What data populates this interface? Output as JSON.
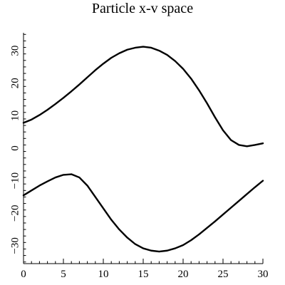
{
  "chart_data": {
    "type": "line",
    "title": "Particle x-v space",
    "xlabel": "",
    "ylabel": "",
    "xlim": [
      0,
      30
    ],
    "ylim": [
      -35.5,
      35.5
    ],
    "grid": false,
    "x_ticks": [
      0,
      5,
      10,
      15,
      20,
      25,
      30
    ],
    "y_ticks": [
      -30,
      -20,
      -10,
      0,
      10,
      20,
      30
    ],
    "series": [
      {
        "x": [
          0,
          1,
          2,
          3,
          4,
          5,
          6,
          7,
          8,
          9,
          10,
          11,
          12,
          13,
          14,
          15,
          16,
          17,
          18,
          19,
          20,
          21,
          22,
          23,
          24,
          25,
          26,
          27,
          28,
          29,
          30
        ],
        "y": [
          7.8,
          8.8,
          10.2,
          11.8,
          13.6,
          15.5,
          17.5,
          19.6,
          21.8,
          24.0,
          26.0,
          27.8,
          29.2,
          30.3,
          30.9,
          31.2,
          30.9,
          30.0,
          28.7,
          26.8,
          24.4,
          21.4,
          17.8,
          13.8,
          9.5,
          5.5,
          2.5,
          1.0,
          0.6,
          1.0,
          1.5
        ]
      },
      {
        "x": [
          0,
          1,
          2,
          3,
          4,
          5,
          6,
          7,
          8,
          9,
          10,
          11,
          12,
          13,
          14,
          15,
          16,
          17,
          18,
          19,
          20,
          21,
          22,
          23,
          24,
          25,
          26,
          27,
          28,
          29,
          30
        ],
        "y": [
          -14.5,
          -13.0,
          -11.5,
          -10.2,
          -9.0,
          -8.2,
          -8.0,
          -9.0,
          -11.5,
          -15.0,
          -18.5,
          -22.0,
          -25.0,
          -27.5,
          -29.5,
          -30.8,
          -31.5,
          -31.8,
          -31.5,
          -30.8,
          -29.8,
          -28.3,
          -26.5,
          -24.5,
          -22.5,
          -20.4,
          -18.3,
          -16.2,
          -14.1,
          -12.0,
          -10.0
        ]
      }
    ]
  }
}
